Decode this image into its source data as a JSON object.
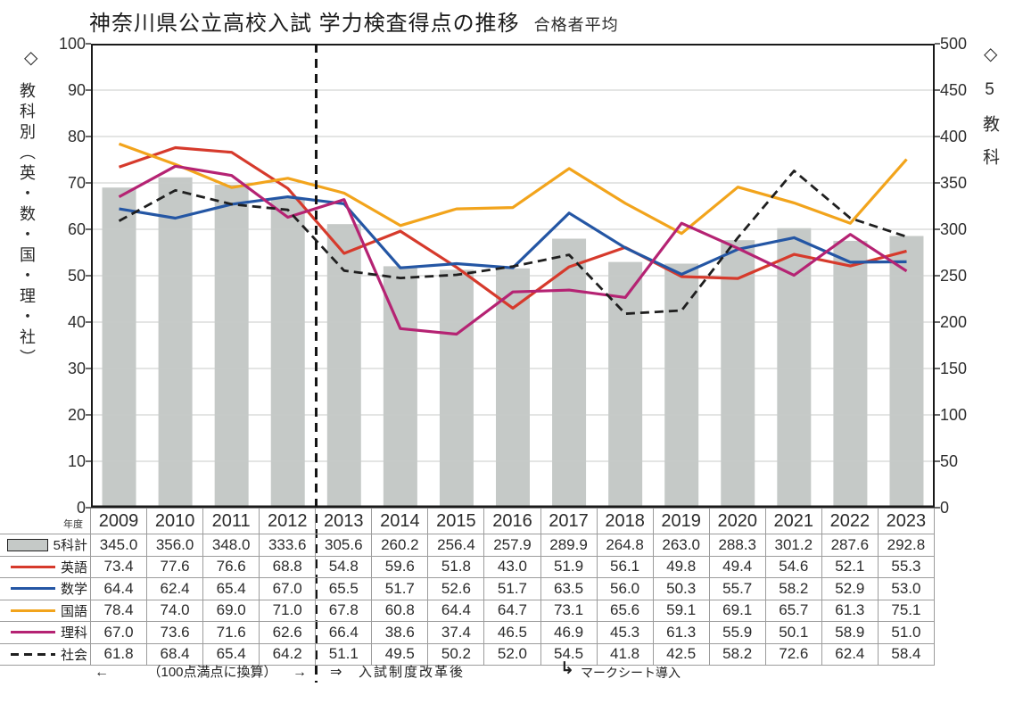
{
  "title": "神奈川県公立高校入試 学力検査得点の推移",
  "subtitle": "合格者平均",
  "axes": {
    "left_caption_diamond": "◇",
    "left_caption": "教科別（英・数・国・理・社）",
    "right_caption_diamond": "◇",
    "right_caption": "5教科"
  },
  "table_meta": {
    "year_header": "年度"
  },
  "footnotes": {
    "left_arrow": "←",
    "conversion_note": "（100点満点に換算）",
    "right_arrow": "→",
    "reform_arrow": "⇒",
    "reform_note": "入試制度改革後",
    "marksheet_arrow": "↳",
    "marksheet_note": "マークシート導入"
  },
  "colors": {
    "bar_fill": "#c5c9c7",
    "english": "#d63a2c",
    "math": "#2456a4",
    "japanese": "#f2a41c",
    "science": "#b52373",
    "social": "#1f1f1f",
    "grid": "#c8cbca",
    "plot_border": "#1a1a1a"
  },
  "chart_data": {
    "type": "bar+line combo",
    "title": "神奈川県公立高校入試 学力検査得点の推移（合格者平均）",
    "categories": [
      "2009",
      "2010",
      "2011",
      "2012",
      "2013",
      "2014",
      "2015",
      "2016",
      "2017",
      "2018",
      "2019",
      "2020",
      "2021",
      "2022",
      "2023"
    ],
    "left_axis": {
      "caption": "教科別（英・数・国・理・社）",
      "min": 0,
      "max": 100,
      "step": 10
    },
    "right_axis": {
      "caption": "5教科",
      "min": 0,
      "max": 500,
      "step": 50
    },
    "grid": true,
    "separator_after_index": 3,
    "bar_series": {
      "key": "five-subject-total",
      "name": "5科計",
      "axis": "right",
      "color": "#c5c9c7",
      "values": [
        345.0,
        356.0,
        348.0,
        333.6,
        305.6,
        260.2,
        256.4,
        257.9,
        289.9,
        264.8,
        263.0,
        288.3,
        301.2,
        287.6,
        292.8
      ]
    },
    "line_series": [
      {
        "key": "english",
        "name": "英語",
        "color": "#d63a2c",
        "dashed": false,
        "values": [
          73.4,
          77.6,
          76.6,
          68.8,
          54.8,
          59.6,
          51.8,
          43.0,
          51.9,
          56.1,
          49.8,
          49.4,
          54.6,
          52.1,
          55.3
        ]
      },
      {
        "key": "math",
        "name": "数学",
        "color": "#2456a4",
        "dashed": false,
        "values": [
          64.4,
          62.4,
          65.4,
          67.0,
          65.5,
          51.7,
          52.6,
          51.7,
          63.5,
          56.0,
          50.3,
          55.7,
          58.2,
          52.9,
          53.0
        ]
      },
      {
        "key": "japanese",
        "name": "国語",
        "color": "#f2a41c",
        "dashed": false,
        "values": [
          78.4,
          74.0,
          69.0,
          71.0,
          67.8,
          60.8,
          64.4,
          64.7,
          73.1,
          65.6,
          59.1,
          69.1,
          65.7,
          61.3,
          75.1
        ]
      },
      {
        "key": "science",
        "name": "理科",
        "color": "#b52373",
        "dashed": false,
        "values": [
          67.0,
          73.6,
          71.6,
          62.6,
          66.4,
          38.6,
          37.4,
          46.5,
          46.9,
          45.3,
          61.3,
          55.9,
          50.1,
          58.9,
          51.0
        ]
      },
      {
        "key": "social-studies",
        "name": "社会",
        "color": "#1f1f1f",
        "dashed": true,
        "values": [
          61.8,
          68.4,
          65.4,
          64.2,
          51.1,
          49.5,
          50.2,
          52.0,
          54.5,
          41.8,
          42.5,
          58.2,
          72.6,
          62.4,
          58.4
        ]
      }
    ]
  }
}
